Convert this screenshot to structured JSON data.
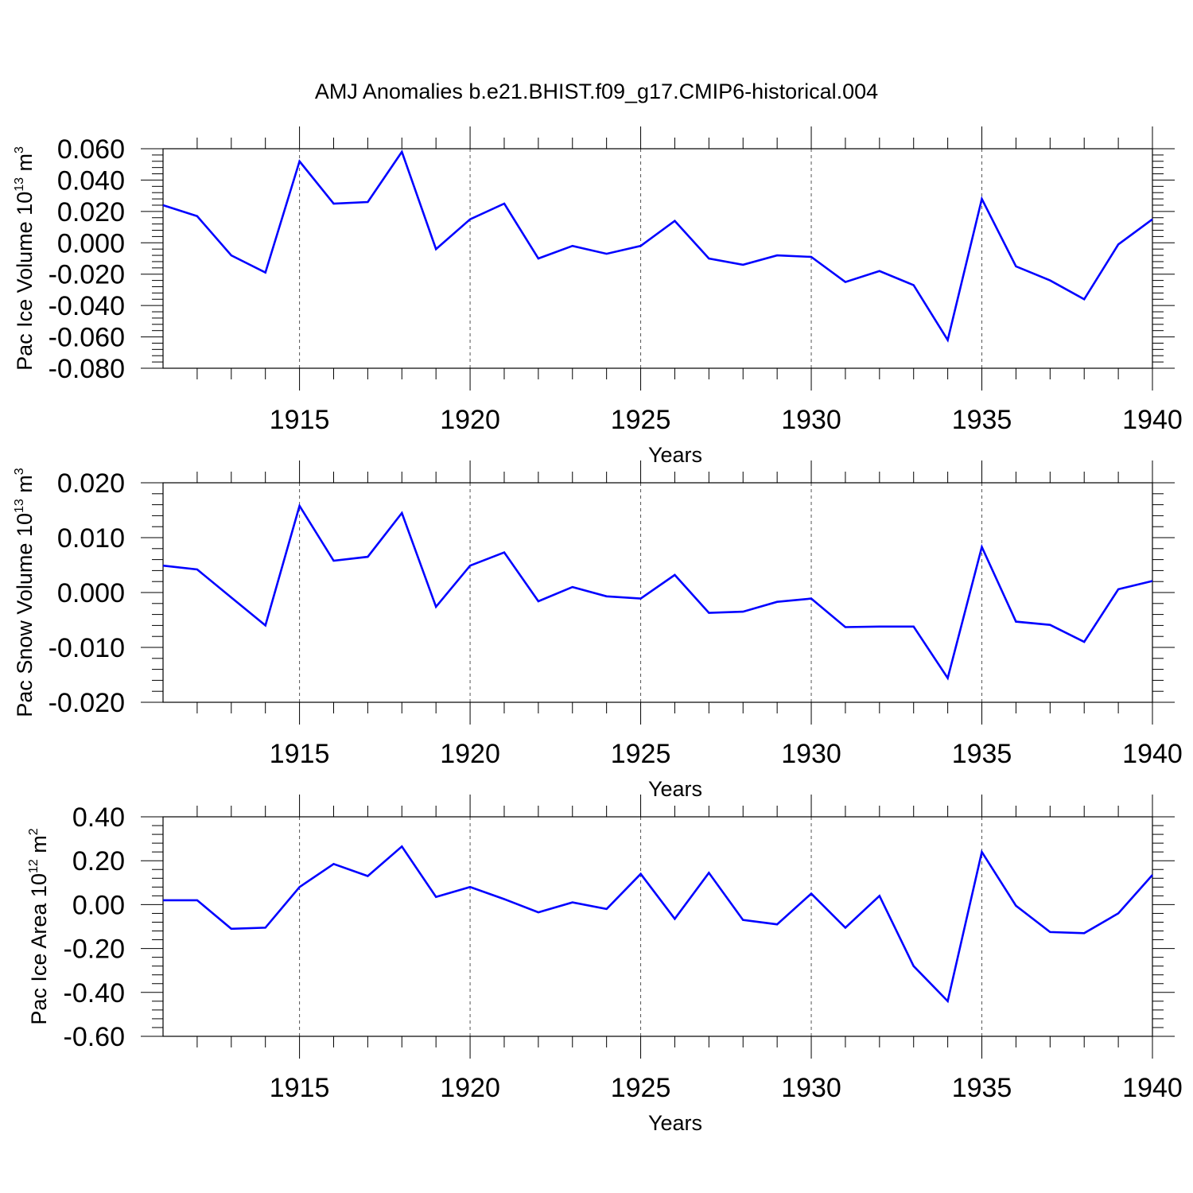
{
  "figure_title": "AMJ Anomalies b.e21.BHIST.f09_g17.CMIP6-historical.004",
  "colors": {
    "line": "#0000ff",
    "axis": "#000000",
    "grid": "#555555"
  },
  "chart_data": [
    {
      "type": "line",
      "title": "AMJ Anomalies b.e21.BHIST.f09_g17.CMIP6-historical.004",
      "ylabel_main": "Pac Ice Volume 10",
      "ylabel_exp": "13",
      "ylabel_unit": " m",
      "ylabel_unit_exp": "3",
      "xlabel": "Years",
      "xlim": [
        1911,
        1940
      ],
      "ylim": [
        -0.08,
        0.06
      ],
      "yticks": [
        -0.08,
        -0.06,
        -0.04,
        -0.02,
        0.0,
        0.02,
        0.04,
        0.06
      ],
      "ytick_labels": [
        "-0.080",
        "-0.060",
        "-0.040",
        "-0.020",
        "0.000",
        "0.020",
        "0.040",
        "0.060"
      ],
      "xticks": [
        1915,
        1920,
        1925,
        1930,
        1935,
        1940
      ],
      "xtick_labels": [
        "1915",
        "1920",
        "1925",
        "1930",
        "1935",
        "1940"
      ],
      "x": [
        1911,
        1912,
        1913,
        1914,
        1915,
        1916,
        1917,
        1918,
        1919,
        1920,
        1921,
        1922,
        1923,
        1924,
        1925,
        1926,
        1927,
        1928,
        1929,
        1930,
        1931,
        1932,
        1933,
        1934,
        1935,
        1936,
        1937,
        1938,
        1939,
        1940
      ],
      "values": [
        0.024,
        0.017,
        -0.008,
        -0.019,
        0.052,
        0.025,
        0.026,
        0.058,
        -0.004,
        0.015,
        0.025,
        -0.01,
        -0.002,
        -0.007,
        -0.002,
        0.014,
        -0.01,
        -0.014,
        -0.008,
        -0.009,
        -0.025,
        -0.018,
        -0.027,
        -0.062,
        0.028,
        -0.015,
        -0.024,
        -0.036,
        -0.001,
        0.015
      ],
      "grid": "dashed vertical at major ticks"
    },
    {
      "type": "line",
      "ylabel_main": "Pac Snow Volume 10",
      "ylabel_exp": "13",
      "ylabel_unit": " m",
      "ylabel_unit_exp": "3",
      "xlabel": "Years",
      "xlim": [
        1911,
        1940
      ],
      "ylim": [
        -0.02,
        0.02
      ],
      "yticks": [
        -0.02,
        -0.01,
        0.0,
        0.01,
        0.02
      ],
      "ytick_labels": [
        "-0.020",
        "-0.010",
        "0.000",
        "0.010",
        "0.020"
      ],
      "xticks": [
        1915,
        1920,
        1925,
        1930,
        1935,
        1940
      ],
      "xtick_labels": [
        "1915",
        "1920",
        "1925",
        "1930",
        "1935",
        "1940"
      ],
      "x": [
        1911,
        1912,
        1913,
        1914,
        1915,
        1916,
        1917,
        1918,
        1919,
        1920,
        1921,
        1922,
        1923,
        1924,
        1925,
        1926,
        1927,
        1928,
        1929,
        1930,
        1931,
        1932,
        1933,
        1934,
        1935,
        1936,
        1937,
        1938,
        1939,
        1940
      ],
      "values": [
        0.0049,
        0.0042,
        -0.0009,
        -0.006,
        0.0158,
        0.0058,
        0.0065,
        0.0145,
        -0.0026,
        0.0049,
        0.0073,
        -0.0016,
        0.001,
        -0.0007,
        -0.0011,
        0.0032,
        -0.0037,
        -0.0035,
        -0.0017,
        -0.0011,
        -0.0063,
        -0.0062,
        -0.0062,
        -0.0156,
        0.0083,
        -0.0053,
        -0.0059,
        -0.009,
        0.0006,
        0.0021
      ],
      "grid": "dashed vertical at major ticks"
    },
    {
      "type": "line",
      "ylabel_main": "Pac Ice Area 10",
      "ylabel_exp": "12",
      "ylabel_unit": " m",
      "ylabel_unit_exp": "2",
      "xlabel": "Years",
      "xlim": [
        1911,
        1940
      ],
      "ylim": [
        -0.6,
        0.4
      ],
      "yticks": [
        -0.6,
        -0.4,
        -0.2,
        0.0,
        0.2,
        0.4
      ],
      "ytick_labels": [
        "-0.60",
        "-0.40",
        "-0.20",
        "0.00",
        "0.20",
        "0.40"
      ],
      "xticks": [
        1915,
        1920,
        1925,
        1930,
        1935,
        1940
      ],
      "xtick_labels": [
        "1915",
        "1920",
        "1925",
        "1930",
        "1935",
        "1940"
      ],
      "x": [
        1911,
        1912,
        1913,
        1914,
        1915,
        1916,
        1917,
        1918,
        1919,
        1920,
        1921,
        1922,
        1923,
        1924,
        1925,
        1926,
        1927,
        1928,
        1929,
        1930,
        1931,
        1932,
        1933,
        1934,
        1935,
        1936,
        1937,
        1938,
        1939,
        1940
      ],
      "values": [
        0.02,
        0.02,
        -0.11,
        -0.105,
        0.08,
        0.185,
        0.13,
        0.265,
        0.035,
        0.08,
        0.025,
        -0.035,
        0.01,
        -0.02,
        0.14,
        -0.065,
        0.145,
        -0.07,
        -0.09,
        0.05,
        -0.105,
        0.04,
        -0.28,
        -0.44,
        0.24,
        -0.005,
        -0.125,
        -0.13,
        -0.04,
        0.135
      ],
      "grid": "dashed vertical at major ticks"
    }
  ]
}
